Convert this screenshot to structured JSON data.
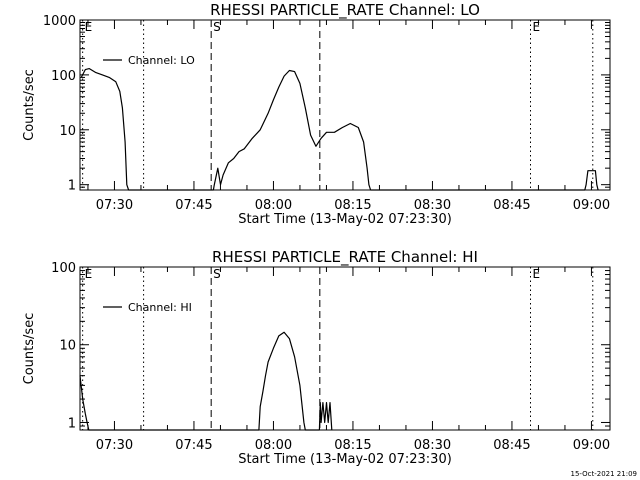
{
  "timestamp": "15-Oct-2021 21:09",
  "chart_data": [
    {
      "type": "line",
      "title": "RHESSI PARTICLE_RATE Channel: LO",
      "xlabel": "Start Time (13-May-02 07:23:30)",
      "ylabel": "Counts/sec",
      "y_scale": "log",
      "xlim": [
        "07:23:30",
        "09:03:30"
      ],
      "ylim": [
        0.8,
        1000
      ],
      "xticks": [
        "07:30",
        "07:45",
        "08:00",
        "08:15",
        "08:30",
        "08:45",
        "09:00"
      ],
      "yticks": [
        "1",
        "10",
        "100",
        "1000"
      ],
      "legend": {
        "label": "Channel: LO",
        "position": "top-left"
      },
      "series": [
        {
          "name": "Channel: LO",
          "points": [
            [
              "07:23:45",
              90
            ],
            [
              "07:24:30",
              125
            ],
            [
              "07:25:15",
              130
            ],
            [
              "07:26:30",
              110
            ],
            [
              "07:27:45",
              100
            ],
            [
              "07:29:00",
              90
            ],
            [
              "07:30:15",
              75
            ],
            [
              "07:31:00",
              50
            ],
            [
              "07:31:30",
              25
            ],
            [
              "07:32:00",
              6
            ],
            [
              "07:32:20",
              1
            ],
            [
              "07:32:40",
              0.8
            ],
            [
              "07:48:40",
              0.8
            ],
            [
              "07:48:50",
              1
            ],
            [
              "07:49:30",
              2
            ],
            [
              "07:50:00",
              1
            ],
            [
              "07:50:30",
              1.5
            ],
            [
              "07:51:30",
              2.5
            ],
            [
              "07:52:30",
              3
            ],
            [
              "07:53:30",
              4
            ],
            [
              "07:54:30",
              4.5
            ],
            [
              "07:56:00",
              7
            ],
            [
              "07:57:30",
              10
            ],
            [
              "07:59:00",
              20
            ],
            [
              "08:00:00",
              35
            ],
            [
              "08:01:00",
              60
            ],
            [
              "08:02:00",
              95
            ],
            [
              "08:03:00",
              120
            ],
            [
              "08:04:00",
              115
            ],
            [
              "08:05:00",
              70
            ],
            [
              "08:06:00",
              25
            ],
            [
              "08:07:00",
              8
            ],
            [
              "08:08:00",
              5
            ],
            [
              "08:09:00",
              7
            ],
            [
              "08:10:00",
              9
            ],
            [
              "08:11:30",
              9
            ],
            [
              "08:13:00",
              11
            ],
            [
              "08:14:30",
              13
            ],
            [
              "08:16:00",
              11
            ],
            [
              "08:17:00",
              6
            ],
            [
              "08:17:40",
              2
            ],
            [
              "08:18:00",
              1
            ],
            [
              "08:18:20",
              0.8
            ],
            [
              "08:58:45",
              0.8
            ],
            [
              "08:59:00",
              1
            ],
            [
              "08:59:20",
              1.8
            ],
            [
              "09:00:00",
              1.8
            ],
            [
              "09:00:45",
              1.8
            ],
            [
              "09:01:00",
              1
            ],
            [
              "09:01:15",
              0.8
            ]
          ]
        }
      ],
      "markers": [
        {
          "label": "E",
          "time": "07:24:00",
          "style": "dotted"
        },
        {
          "label": "",
          "time": "07:35:30",
          "style": "dotted"
        },
        {
          "label": "S",
          "time": "07:48:15",
          "style": "dashed"
        },
        {
          "label": "",
          "time": "08:08:45",
          "style": "dashed"
        },
        {
          "label": "E",
          "time": "08:48:30",
          "style": "dotted"
        },
        {
          "label": "",
          "time": "09:00:15",
          "style": "dotted"
        }
      ]
    },
    {
      "type": "line",
      "title": "RHESSI PARTICLE_RATE Channel: HI",
      "xlabel": "Start Time (13-May-02 07:23:30)",
      "ylabel": "Counts/sec",
      "y_scale": "log",
      "xlim": [
        "07:23:30",
        "09:03:30"
      ],
      "ylim": [
        0.8,
        100
      ],
      "xticks": [
        "07:30",
        "07:45",
        "08:00",
        "08:15",
        "08:30",
        "08:45",
        "09:00"
      ],
      "yticks": [
        "1",
        "10",
        "100"
      ],
      "legend": {
        "label": "Channel: HI",
        "position": "top-left"
      },
      "series": [
        {
          "name": "Channel: HI",
          "points": [
            [
              "07:23:30",
              4
            ],
            [
              "07:24:00",
              2
            ],
            [
              "07:24:30",
              1.3
            ],
            [
              "07:24:50",
              1
            ],
            [
              "07:25:10",
              0.8
            ],
            [
              "07:57:15",
              0.8
            ],
            [
              "07:57:30",
              1.6
            ],
            [
              "07:58:00",
              2.5
            ],
            [
              "07:58:30",
              4
            ],
            [
              "07:59:00",
              6
            ],
            [
              "08:00:00",
              9
            ],
            [
              "08:01:00",
              13
            ],
            [
              "08:02:00",
              14.5
            ],
            [
              "08:03:00",
              12
            ],
            [
              "08:04:00",
              7
            ],
            [
              "08:05:00",
              3
            ],
            [
              "08:05:45",
              1
            ],
            [
              "08:06:00",
              0.8
            ],
            [
              "08:08:40",
              0.8
            ],
            [
              "08:08:50",
              1.8
            ],
            [
              "08:09:00",
              1
            ],
            [
              "08:09:20",
              1.8
            ],
            [
              "08:09:40",
              1
            ],
            [
              "08:10:00",
              1.8
            ],
            [
              "08:10:20",
              1
            ],
            [
              "08:10:40",
              1.8
            ],
            [
              "08:11:00",
              0.8
            ]
          ]
        }
      ],
      "markers": [
        {
          "label": "E",
          "time": "07:24:00",
          "style": "dotted"
        },
        {
          "label": "",
          "time": "07:35:30",
          "style": "dotted"
        },
        {
          "label": "S",
          "time": "07:48:15",
          "style": "dashed"
        },
        {
          "label": "",
          "time": "08:08:45",
          "style": "dashed"
        },
        {
          "label": "E",
          "time": "08:48:30",
          "style": "dotted"
        },
        {
          "label": "",
          "time": "09:00:15",
          "style": "dotted"
        }
      ]
    }
  ]
}
